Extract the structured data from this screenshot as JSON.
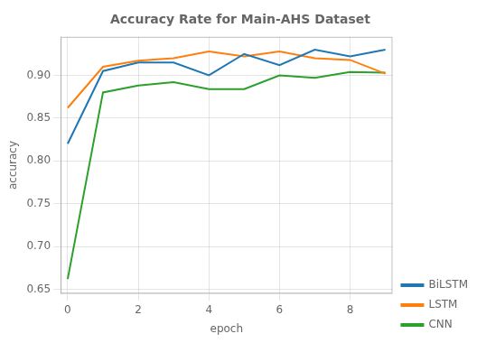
{
  "chart_data": {
    "type": "line",
    "title": "Accuracy Rate for Main-AHS Dataset",
    "xlabel": "epoch",
    "ylabel": "accuracy",
    "x": [
      0,
      1,
      2,
      3,
      4,
      5,
      6,
      7,
      8,
      9
    ],
    "series": [
      {
        "name": "BiLSTM",
        "color": "#1f77b4",
        "values": [
          0.82,
          0.905,
          0.915,
          0.915,
          0.9,
          0.925,
          0.912,
          0.93,
          0.922,
          0.93
        ]
      },
      {
        "name": "LSTM",
        "color": "#ff7f0e",
        "values": [
          0.862,
          0.91,
          0.917,
          0.92,
          0.928,
          0.922,
          0.928,
          0.92,
          0.918,
          0.902
        ]
      },
      {
        "name": "CNN",
        "color": "#2ca02c",
        "values": [
          0.662,
          0.88,
          0.888,
          0.892,
          0.884,
          0.884,
          0.9,
          0.897,
          0.904,
          0.903
        ]
      }
    ],
    "xlim": [
      -0.2,
      9.2
    ],
    "xticks": [
      0,
      2,
      4,
      6,
      8
    ],
    "ylim": [
      0.645,
      0.945
    ],
    "yticks": [
      0.65,
      {
        "value": 0.7,
        "label": "0.70"
      },
      0.75,
      {
        "value": 0.8,
        "label": "0.80"
      },
      0.85,
      {
        "value": 0.9,
        "label": "0.90"
      }
    ],
    "grid": true,
    "legend": "lower right"
  }
}
